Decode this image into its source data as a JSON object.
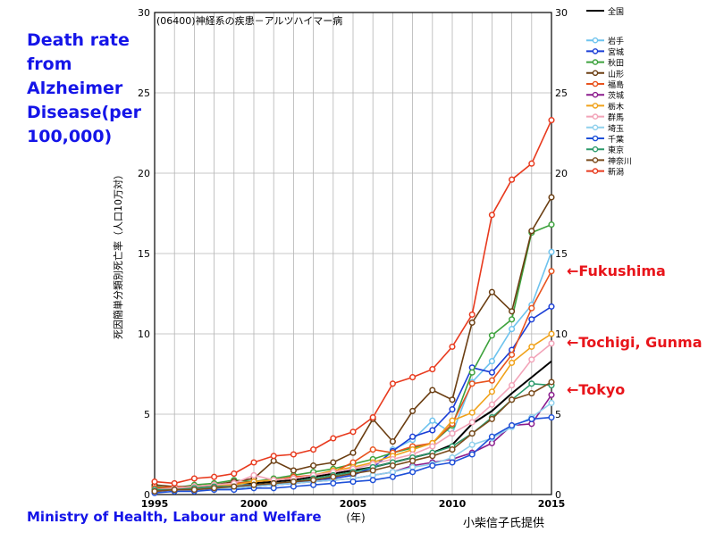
{
  "headline": "Death rate from Alzheimer Disease(per 100,000)",
  "source": "Ministry of Health, Labour and Welfare",
  "credit": "小柴信子氏提供",
  "callouts": {
    "fukushima": "←Fukushima",
    "tochigi_gunma": "←Tochigi, Gunma",
    "tokyo": "←Tokyo"
  },
  "chart_data": {
    "type": "line",
    "title": "(06400)神経系の疾患－アルツハイマー病",
    "xlabel": "(年)",
    "ylabel": "死因簡単分類別死亡率（人口10万対）",
    "xlim": [
      1995,
      2015
    ],
    "ylim": [
      0,
      30
    ],
    "x_ticks": [
      "1995",
      "2000",
      "2005",
      "2010",
      "2015"
    ],
    "y_ticks": [
      "0",
      "5",
      "10",
      "15",
      "20",
      "25",
      "30"
    ],
    "grid": true,
    "legend_position": "right",
    "x": [
      1995,
      1996,
      1997,
      1998,
      1999,
      2000,
      2001,
      2002,
      2003,
      2004,
      2005,
      2006,
      2007,
      2008,
      2009,
      2010,
      2011,
      2012,
      2013,
      2014,
      2015
    ],
    "series": [
      {
        "name": "全国",
        "color": "#000000",
        "marker": false,
        "values": [
          0.3,
          0.4,
          0.5,
          0.5,
          0.6,
          0.7,
          0.8,
          0.9,
          1.1,
          1.3,
          1.5,
          1.7,
          2.0,
          2.3,
          2.6,
          3.1,
          4.4,
          5.2,
          6.3,
          7.3,
          8.3
        ]
      },
      {
        "name": "岩手",
        "color": "#6ec3ee",
        "marker": true,
        "values": [
          0.3,
          0.4,
          0.4,
          0.5,
          0.6,
          0.6,
          0.7,
          0.8,
          0.9,
          1.1,
          1.3,
          1.6,
          2.8,
          3.4,
          4.6,
          3.8,
          7.0,
          8.3,
          10.3,
          11.8,
          15.1
        ]
      },
      {
        "name": "宮城",
        "color": "#1a3ed6",
        "marker": true,
        "values": [
          0.2,
          0.3,
          0.3,
          0.4,
          0.4,
          0.5,
          0.6,
          0.7,
          0.9,
          1.0,
          1.2,
          1.7,
          2.7,
          3.6,
          4.0,
          5.3,
          7.9,
          7.6,
          9.0,
          10.9,
          11.7
        ]
      },
      {
        "name": "秋田",
        "color": "#3da23d",
        "marker": true,
        "values": [
          0.5,
          0.4,
          0.6,
          0.7,
          0.9,
          0.8,
          1.0,
          1.2,
          1.4,
          1.6,
          1.9,
          2.2,
          2.6,
          2.9,
          3.2,
          4.3,
          7.6,
          9.9,
          10.9,
          16.3,
          16.8
        ]
      },
      {
        "name": "山形",
        "color": "#6b3e12",
        "marker": true,
        "values": [
          0.6,
          0.5,
          0.5,
          0.6,
          0.8,
          1.0,
          2.1,
          1.5,
          1.8,
          2.0,
          2.6,
          4.7,
          3.3,
          5.2,
          6.5,
          5.9,
          10.7,
          12.6,
          11.4,
          16.4,
          18.5
        ]
      },
      {
        "name": "福島",
        "color": "#e8531e",
        "marker": true,
        "values": [
          0.4,
          0.5,
          0.4,
          0.5,
          0.7,
          0.8,
          0.9,
          1.1,
          1.2,
          1.4,
          2.0,
          2.8,
          2.6,
          3.0,
          3.2,
          4.4,
          6.9,
          7.1,
          8.7,
          11.6,
          13.9
        ]
      },
      {
        "name": "茨城",
        "color": "#8b1c8e",
        "marker": true,
        "values": [
          0.2,
          0.3,
          0.3,
          0.4,
          0.4,
          0.5,
          0.6,
          0.7,
          0.8,
          0.9,
          1.0,
          1.2,
          1.4,
          1.8,
          2.0,
          2.2,
          2.6,
          3.2,
          4.3,
          4.4,
          6.2
        ]
      },
      {
        "name": "栃木",
        "color": "#f0a21a",
        "marker": true,
        "values": [
          0.3,
          0.4,
          0.5,
          0.6,
          0.6,
          0.8,
          0.9,
          1.0,
          1.2,
          1.5,
          1.7,
          2.0,
          2.4,
          2.8,
          3.2,
          4.6,
          5.1,
          6.4,
          8.2,
          9.2,
          10.0
        ]
      },
      {
        "name": "群馬",
        "color": "#f2a3b8",
        "marker": true,
        "values": [
          0.3,
          0.4,
          0.5,
          0.6,
          0.7,
          1.2,
          0.9,
          1.0,
          1.2,
          1.4,
          1.6,
          1.9,
          2.2,
          2.5,
          3.0,
          3.8,
          4.5,
          5.6,
          6.8,
          8.4,
          9.4
        ]
      },
      {
        "name": "埼玉",
        "color": "#8fd0ec",
        "marker": true,
        "values": [
          0.2,
          0.3,
          0.3,
          0.4,
          0.4,
          0.5,
          0.6,
          0.7,
          0.8,
          0.9,
          1.0,
          1.2,
          1.4,
          1.7,
          1.9,
          2.3,
          3.1,
          3.5,
          4.2,
          4.8,
          5.7
        ]
      },
      {
        "name": "千葉",
        "color": "#1e50d8",
        "marker": true,
        "values": [
          0.1,
          0.2,
          0.2,
          0.3,
          0.3,
          0.4,
          0.4,
          0.5,
          0.6,
          0.7,
          0.8,
          0.9,
          1.1,
          1.4,
          1.8,
          2.0,
          2.5,
          3.6,
          4.3,
          4.7,
          4.8
        ]
      },
      {
        "name": "東京",
        "color": "#2b9a6b",
        "marker": true,
        "values": [
          0.3,
          0.3,
          0.4,
          0.5,
          0.5,
          0.6,
          0.7,
          0.8,
          1.0,
          1.2,
          1.4,
          1.7,
          2.0,
          2.3,
          2.6,
          3.0,
          3.8,
          4.8,
          5.9,
          6.9,
          6.8
        ]
      },
      {
        "name": "神奈川",
        "color": "#7b4b1c",
        "marker": true,
        "values": [
          0.2,
          0.3,
          0.3,
          0.4,
          0.5,
          0.6,
          0.7,
          0.8,
          0.9,
          1.1,
          1.3,
          1.5,
          1.8,
          2.1,
          2.4,
          2.8,
          3.8,
          4.7,
          5.9,
          6.3,
          7.0
        ]
      },
      {
        "name": "新潟",
        "color": "#e83a1e",
        "marker": true,
        "values": [
          0.8,
          0.7,
          1.0,
          1.1,
          1.3,
          2.0,
          2.4,
          2.5,
          2.8,
          3.5,
          3.9,
          4.8,
          6.9,
          7.3,
          7.8,
          9.2,
          11.2,
          17.4,
          19.6,
          20.6,
          23.3
        ]
      }
    ]
  }
}
